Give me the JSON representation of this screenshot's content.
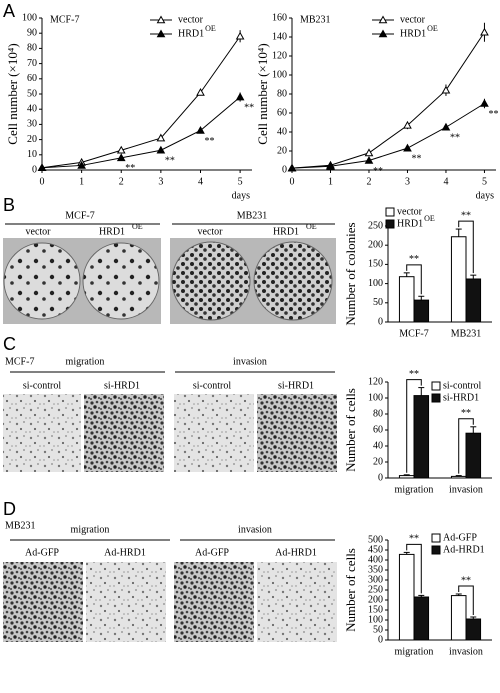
{
  "panel_labels": [
    "A",
    "B",
    "C",
    "D"
  ],
  "panel_b": {
    "cell_lines": [
      "MCF-7",
      "MB231"
    ],
    "conditions": [
      "vector",
      "HRD1"
    ],
    "condition_sup": "OE"
  },
  "panel_c": {
    "cell_line": "MCF-7",
    "assays": [
      "migration",
      "invasion"
    ],
    "conditions": [
      "si-control",
      "si-HRD1"
    ]
  },
  "panel_d": {
    "cell_line": "MB231",
    "assays": [
      "migration",
      "invasion"
    ],
    "conditions": [
      "Ad-GFP",
      "Ad-HRD1"
    ]
  },
  "chart_data": [
    {
      "type": "line",
      "title": "MCF-7",
      "ylabel": "Cell number (×10⁴)",
      "xlabel": "days",
      "x": [
        0,
        1,
        2,
        3,
        4,
        5
      ],
      "xlim": [
        0,
        5.3
      ],
      "xticks": [
        0,
        1,
        2,
        3,
        4,
        5
      ],
      "ylim": [
        0,
        100
      ],
      "yticks": [
        0,
        10,
        20,
        30,
        40,
        50,
        60,
        70,
        80,
        90,
        100
      ],
      "series": [
        {
          "name": "vector",
          "marker": "open-triangle",
          "color": "#000000",
          "values": [
            1.5,
            5,
            13,
            21,
            51,
            88
          ],
          "errors": [
            0.5,
            1,
            2,
            2,
            2,
            4
          ]
        },
        {
          "name": "HRD1",
          "name_sup": "OE",
          "marker": "filled-triangle",
          "color": "#000000",
          "values": [
            1.5,
            3,
            8,
            13,
            26,
            48
          ],
          "errors": [
            0.5,
            0.5,
            1,
            1,
            2,
            3
          ]
        }
      ],
      "annotations": [
        {
          "x": 2,
          "text": "**"
        },
        {
          "x": 3,
          "text": "**"
        },
        {
          "x": 4,
          "text": "**"
        },
        {
          "x": 5,
          "text": "**"
        }
      ]
    },
    {
      "type": "line",
      "title": "MB231",
      "ylabel": "Cell number (×10⁴)",
      "xlabel": "days",
      "x": [
        0,
        1,
        2,
        3,
        4,
        5
      ],
      "xlim": [
        0,
        5.3
      ],
      "xticks": [
        0,
        1,
        2,
        3,
        4,
        5
      ],
      "ylim": [
        0,
        160
      ],
      "yticks": [
        0,
        20,
        40,
        60,
        80,
        100,
        120,
        140,
        160
      ],
      "series": [
        {
          "name": "vector",
          "marker": "open-triangle",
          "color": "#000000",
          "values": [
            2,
            5,
            18,
            47,
            84,
            145
          ],
          "errors": [
            1,
            1,
            2,
            4,
            6,
            10
          ]
        },
        {
          "name": "HRD1",
          "name_sup": "OE",
          "marker": "filled-triangle",
          "color": "#000000",
          "values": [
            2,
            4,
            10,
            23,
            45,
            70
          ],
          "errors": [
            1,
            1,
            1,
            2,
            2,
            5
          ]
        }
      ],
      "annotations": [
        {
          "x": 2,
          "text": "**"
        },
        {
          "x": 3,
          "text": "**"
        },
        {
          "x": 4,
          "text": "**"
        },
        {
          "x": 5,
          "text": "**"
        }
      ]
    },
    {
      "type": "bar",
      "ylabel": "Number of colonies",
      "categories": [
        "MCF-7",
        "MB231"
      ],
      "ylim": [
        0,
        250
      ],
      "yticks": [
        0,
        50,
        100,
        150,
        200,
        250
      ],
      "series": [
        {
          "name": "vector",
          "color": "#ffffff",
          "values": [
            118,
            222
          ],
          "errors": [
            10,
            20
          ]
        },
        {
          "name": "HRD1",
          "name_sup": "OE",
          "color": "#111111",
          "values": [
            57,
            112
          ],
          "errors": [
            10,
            10
          ]
        }
      ],
      "annotations": [
        {
          "category": 0,
          "text": "**"
        },
        {
          "category": 1,
          "text": "**"
        }
      ]
    },
    {
      "type": "bar",
      "ylabel": "Number of cells",
      "categories": [
        "migration",
        "invasion"
      ],
      "ylim": [
        0,
        120
      ],
      "yticks": [
        0,
        20,
        40,
        60,
        80,
        100,
        120
      ],
      "series": [
        {
          "name": "si-control",
          "color": "#ffffff",
          "values": [
            3,
            2
          ],
          "errors": [
            1,
            1
          ]
        },
        {
          "name": "si-HRD1",
          "color": "#111111",
          "values": [
            103,
            56
          ],
          "errors": [
            10,
            8
          ]
        }
      ],
      "annotations": [
        {
          "category": 0,
          "text": "**"
        },
        {
          "category": 1,
          "text": "**"
        }
      ]
    },
    {
      "type": "bar",
      "ylabel": "Number of cells",
      "categories": [
        "migration",
        "invasion"
      ],
      "ylim": [
        0,
        500
      ],
      "yticks": [
        0,
        50,
        100,
        150,
        200,
        250,
        300,
        350,
        400,
        450,
        500
      ],
      "series": [
        {
          "name": "Ad-GFP",
          "color": "#ffffff",
          "values": [
            428,
            222
          ],
          "errors": [
            10,
            8
          ]
        },
        {
          "name": "Ad-HRD1",
          "color": "#111111",
          "values": [
            215,
            105
          ],
          "errors": [
            8,
            10
          ]
        }
      ],
      "annotations": [
        {
          "category": 0,
          "text": "**"
        },
        {
          "category": 1,
          "text": "**"
        }
      ]
    }
  ]
}
